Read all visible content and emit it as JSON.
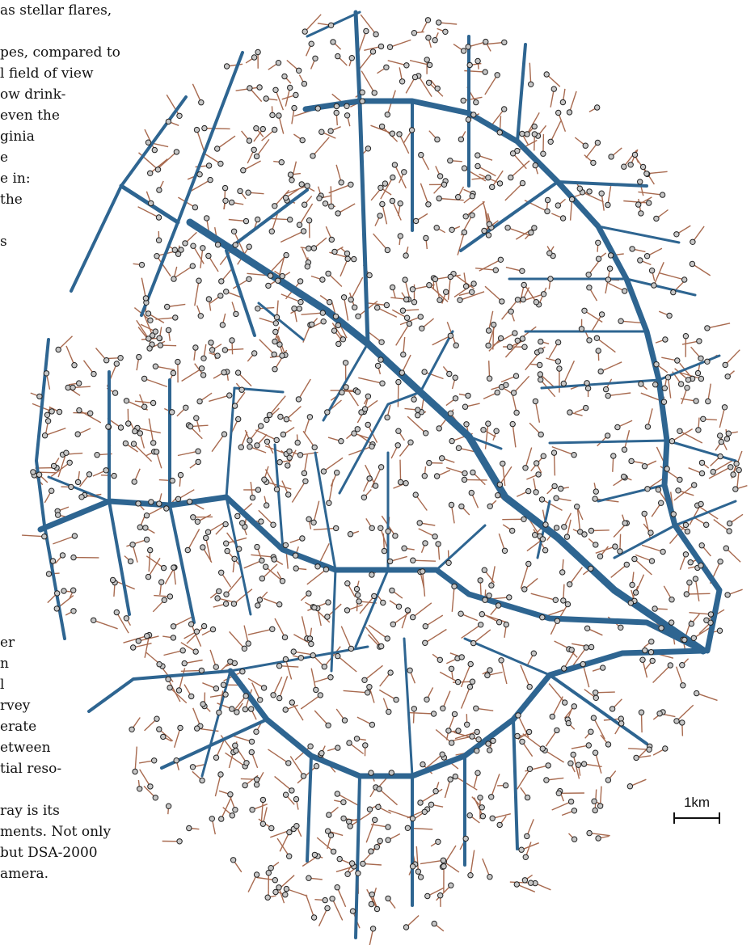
{
  "article": {
    "top_lines": [
      "as stellar flares,",
      "",
      "pes, compared to",
      "l field of view",
      "ow drink-",
      "even the",
      "ginia",
      "e",
      "e in:",
      " the",
      "",
      "s"
    ],
    "bottom_lines": [
      "er",
      "n",
      "l",
      "rvey",
      "erate",
      "etween",
      "tial reso-",
      "",
      "ray is its",
      "ments. Not only",
      " but DSA-2000",
      "amera."
    ]
  },
  "scale_bar": {
    "label": "1km"
  },
  "colors": {
    "trunk": "#2e6591",
    "feeder": "#a86a4f",
    "antenna_fill": "#c6c6c6",
    "antenna_stroke": "#222222"
  }
}
